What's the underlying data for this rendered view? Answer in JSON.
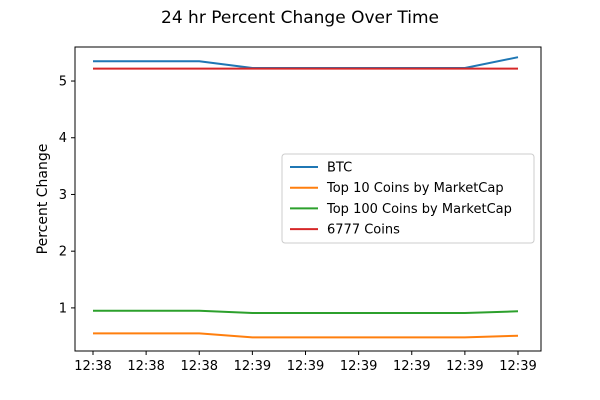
{
  "chart_data": {
    "type": "line",
    "title": "24 hr Percent Change Over Time",
    "xlabel": "",
    "ylabel": "Percent Change",
    "x_ticks": [
      "12:38",
      "12:38",
      "12:38",
      "12:39",
      "12:39",
      "12:39",
      "12:39",
      "12:39",
      "12:39"
    ],
    "ylim": [
      0.24,
      5.6
    ],
    "y_ticks": [
      1,
      2,
      3,
      4,
      5
    ],
    "grid": false,
    "legend_position": "center-right",
    "series": [
      {
        "name": "BTC",
        "color": "#1f77b4",
        "values": [
          5.35,
          5.35,
          5.35,
          5.23,
          5.23,
          5.23,
          5.23,
          5.23,
          5.42
        ]
      },
      {
        "name": "Top 10 Coins by MarketCap",
        "color": "#ff7f0e",
        "values": [
          0.55,
          0.55,
          0.55,
          0.48,
          0.48,
          0.48,
          0.48,
          0.48,
          0.51
        ]
      },
      {
        "name": "Top 100 Coins by MarketCap",
        "color": "#2ca02c",
        "values": [
          0.95,
          0.95,
          0.95,
          0.91,
          0.91,
          0.91,
          0.91,
          0.91,
          0.94
        ]
      },
      {
        "name": "6777 Coins",
        "color": "#d62728",
        "values": [
          5.22,
          5.22,
          5.22,
          5.22,
          5.22,
          5.22,
          5.22,
          5.22,
          5.22
        ]
      }
    ]
  }
}
